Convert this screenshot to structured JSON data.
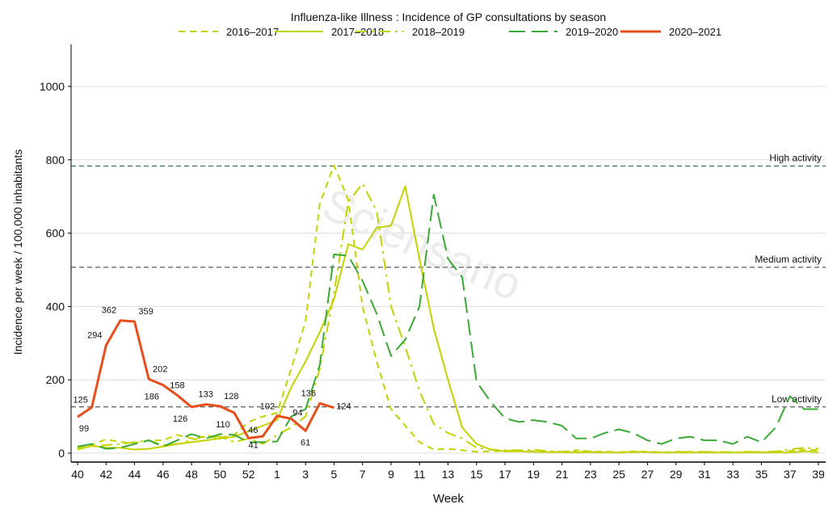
{
  "chart_data": {
    "type": "line",
    "title": "Influenza-like Illness : Incidence of GP consultations by season",
    "xlabel": "Week",
    "ylabel": "Incidence per week / 100,000 inhabitants",
    "ylim": [
      0,
      1110
    ],
    "yticks": [
      0,
      200,
      400,
      600,
      800,
      1000
    ],
    "weeks": [
      40,
      41,
      42,
      43,
      44,
      45,
      46,
      47,
      48,
      49,
      50,
      51,
      52,
      53,
      1,
      2,
      3,
      4,
      5,
      6,
      7,
      8,
      9,
      10,
      11,
      12,
      13,
      14,
      15,
      16,
      17,
      18,
      19,
      20,
      21,
      22,
      23,
      24,
      25,
      26,
      27,
      28,
      29,
      30,
      31,
      32,
      33,
      34,
      35,
      36,
      37,
      38,
      39
    ],
    "xtick_labels": [
      "40",
      "42",
      "44",
      "46",
      "48",
      "50",
      "52",
      "1",
      "3",
      "5",
      "7",
      "9",
      "11",
      "13",
      "15",
      "17",
      "19",
      "21",
      "23",
      "25",
      "27",
      "29",
      "31",
      "33",
      "35",
      "37",
      "39"
    ],
    "grid": true,
    "legend_position": "top",
    "thresholds": [
      {
        "label": "High activity",
        "value": 783
      },
      {
        "label": "Medium activity",
        "value": 507
      },
      {
        "label": "Low activity",
        "value": 126
      }
    ],
    "series": [
      {
        "name": "2016–2017",
        "color": "#c3d300",
        "dash": "8,6",
        "values": [
          15,
          22,
          38,
          30,
          28,
          35,
          35,
          50,
          40,
          45,
          42,
          50,
          85,
          100,
          110,
          230,
          360,
          680,
          785,
          690,
          400,
          250,
          120,
          75,
          30,
          10,
          12,
          8,
          4,
          5,
          6,
          8,
          5,
          3,
          3,
          8,
          5,
          4,
          3,
          5,
          4,
          3,
          3,
          4,
          3,
          3,
          2,
          4,
          3,
          3,
          6,
          10,
          8
        ]
      },
      {
        "name": "2017–2018",
        "color": "#c3d300",
        "dash": "",
        "values": [
          10,
          20,
          15,
          15,
          10,
          12,
          18,
          25,
          30,
          35,
          40,
          45,
          60,
          75,
          90,
          180,
          250,
          330,
          420,
          570,
          555,
          615,
          620,
          728,
          530,
          340,
          200,
          70,
          25,
          10,
          5,
          5,
          4,
          3,
          3,
          2,
          3,
          2,
          2,
          4,
          3,
          2,
          2,
          2,
          2,
          2,
          2,
          2,
          2,
          2,
          2,
          5,
          3
        ]
      },
      {
        "name": "2018–2019",
        "color": "#c3d300",
        "dash": "14,6,3,6",
        "values": [
          15,
          18,
          22,
          25,
          30,
          35,
          22,
          25,
          35,
          48,
          45,
          30,
          40,
          25,
          50,
          70,
          100,
          230,
          436,
          685,
          735,
          660,
          400,
          290,
          170,
          80,
          55,
          40,
          15,
          10,
          8,
          8,
          10,
          6,
          4,
          6,
          4,
          3,
          2,
          3,
          3,
          2,
          4,
          3,
          4,
          3,
          3,
          4,
          3,
          5,
          10,
          15,
          12
        ]
      },
      {
        "name": "2019–2020",
        "color": "#3aa935",
        "dash": "20,8",
        "values": [
          18,
          25,
          12,
          15,
          25,
          35,
          18,
          35,
          52,
          40,
          52,
          50,
          30,
          30,
          32,
          100,
          120,
          240,
          542,
          538,
          470,
          380,
          265,
          310,
          400,
          705,
          530,
          480,
          195,
          140,
          95,
          85,
          90,
          85,
          75,
          40,
          40,
          55,
          65,
          55,
          35,
          25,
          40,
          45,
          35,
          35,
          25,
          45,
          30,
          70,
          155,
          120,
          120
        ]
      },
      {
        "name": "2020–2021",
        "color": "#e84e1b",
        "dash": "",
        "values": [
          99,
          125,
          294,
          362,
          359,
          202,
          186,
          158,
          126,
          133,
          128,
          110,
          41,
          46,
          102,
          94,
          61,
          136,
          124
        ],
        "data_labels": [
          "99",
          "125",
          "294",
          "362",
          "359",
          "202",
          "186",
          "158",
          "126",
          "133",
          "128",
          "110",
          "41",
          "46",
          "102",
          "94",
          "61",
          "136",
          "124"
        ]
      }
    ],
    "watermark": "Sciensano"
  }
}
